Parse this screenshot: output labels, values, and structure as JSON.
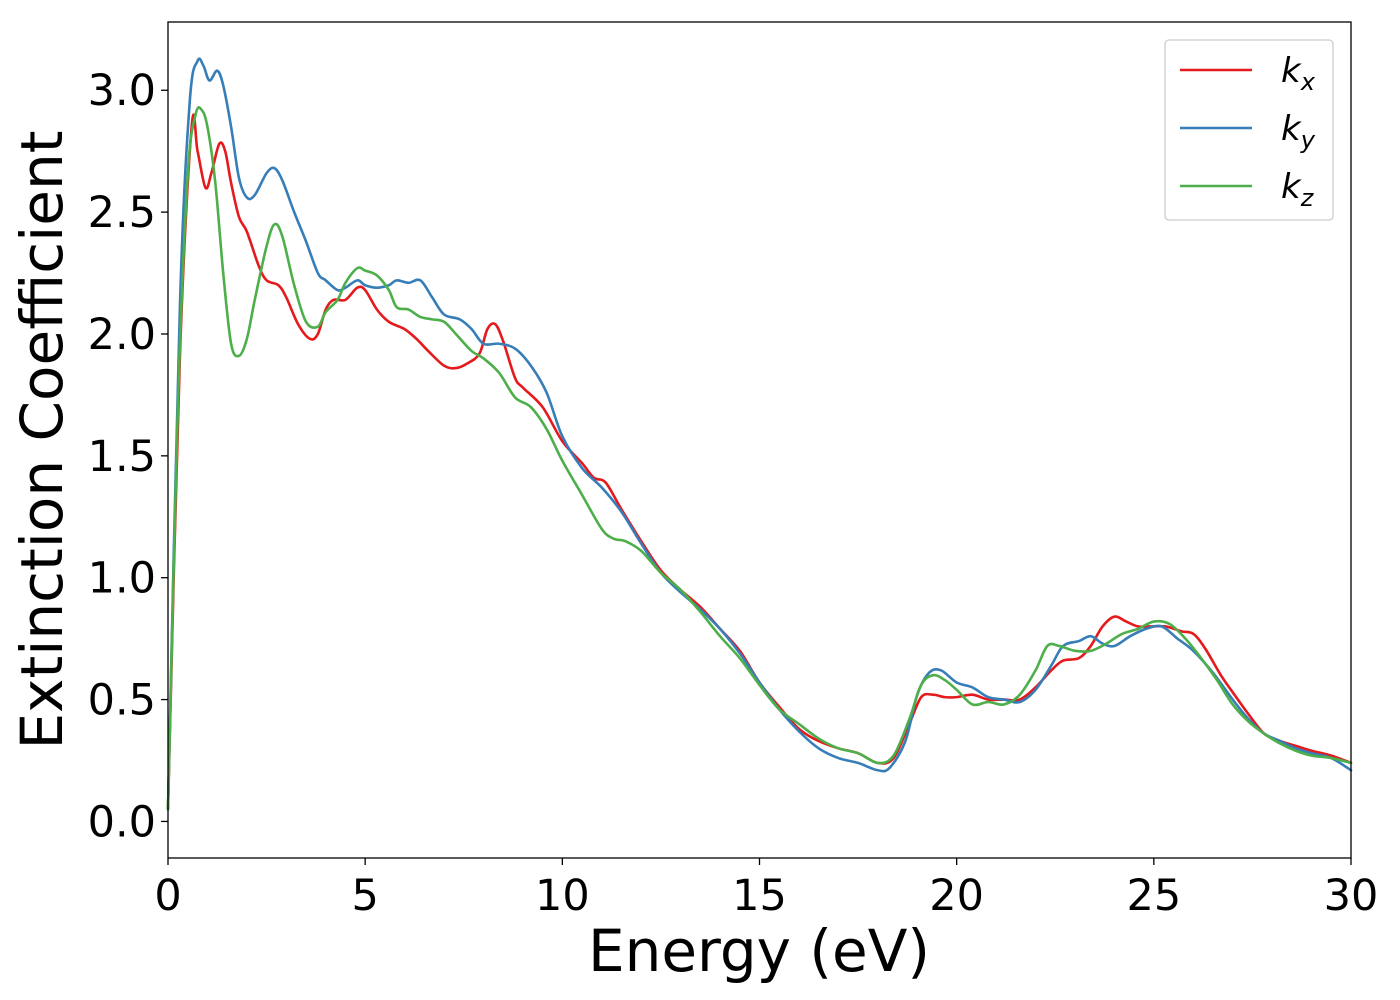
{
  "chart_data": {
    "type": "line",
    "xlabel": "Energy (eV)",
    "ylabel": "Extinction Coefficient",
    "xlim": [
      0,
      30
    ],
    "ylim": [
      -0.15,
      3.28
    ],
    "xticks": [
      0,
      5,
      10,
      15,
      20,
      25,
      30
    ],
    "xtick_labels": [
      "0",
      "5",
      "10",
      "15",
      "20",
      "25",
      "30"
    ],
    "yticks": [
      0.0,
      0.5,
      1.0,
      1.5,
      2.0,
      2.5,
      3.0
    ],
    "ytick_labels": [
      "0.0",
      "0.5",
      "1.0",
      "1.5",
      "2.0",
      "2.5",
      "3.0"
    ],
    "grid": false,
    "legend": "top-right",
    "series": [
      {
        "name": "k",
        "subscript": "x",
        "color": "#e41a1c",
        "points": [
          [
            0,
            0.05
          ],
          [
            0.3,
            1.9
          ],
          [
            0.6,
            2.85
          ],
          [
            0.75,
            2.75
          ],
          [
            0.95,
            2.6
          ],
          [
            1.1,
            2.66
          ],
          [
            1.3,
            2.78
          ],
          [
            1.45,
            2.75
          ],
          [
            1.6,
            2.62
          ],
          [
            1.8,
            2.48
          ],
          [
            2.0,
            2.42
          ],
          [
            2.3,
            2.28
          ],
          [
            2.5,
            2.22
          ],
          [
            2.8,
            2.2
          ],
          [
            3.0,
            2.15
          ],
          [
            3.3,
            2.04
          ],
          [
            3.6,
            1.98
          ],
          [
            3.8,
            2.0
          ],
          [
            4.0,
            2.1
          ],
          [
            4.2,
            2.14
          ],
          [
            4.5,
            2.14
          ],
          [
            4.8,
            2.19
          ],
          [
            5.0,
            2.18
          ],
          [
            5.3,
            2.1
          ],
          [
            5.6,
            2.05
          ],
          [
            6.0,
            2.02
          ],
          [
            6.3,
            1.98
          ],
          [
            6.6,
            1.93
          ],
          [
            7.0,
            1.87
          ],
          [
            7.3,
            1.86
          ],
          [
            7.6,
            1.88
          ],
          [
            7.9,
            1.92
          ],
          [
            8.1,
            2.02
          ],
          [
            8.3,
            2.04
          ],
          [
            8.5,
            1.97
          ],
          [
            8.8,
            1.82
          ],
          [
            9.0,
            1.78
          ],
          [
            9.5,
            1.7
          ],
          [
            10.0,
            1.56
          ],
          [
            10.5,
            1.47
          ],
          [
            10.8,
            1.41
          ],
          [
            11.1,
            1.39
          ],
          [
            11.5,
            1.28
          ],
          [
            12.0,
            1.15
          ],
          [
            12.5,
            1.03
          ],
          [
            13.0,
            0.95
          ],
          [
            13.5,
            0.88
          ],
          [
            14.0,
            0.79
          ],
          [
            14.5,
            0.7
          ],
          [
            15.0,
            0.57
          ],
          [
            15.5,
            0.47
          ],
          [
            16.0,
            0.38
          ],
          [
            16.5,
            0.33
          ],
          [
            17.0,
            0.3
          ],
          [
            17.5,
            0.28
          ],
          [
            18.0,
            0.24
          ],
          [
            18.4,
            0.26
          ],
          [
            18.8,
            0.4
          ],
          [
            19.1,
            0.51
          ],
          [
            19.4,
            0.52
          ],
          [
            19.7,
            0.51
          ],
          [
            20.0,
            0.51
          ],
          [
            20.4,
            0.52
          ],
          [
            20.8,
            0.5
          ],
          [
            21.2,
            0.5
          ],
          [
            21.6,
            0.5
          ],
          [
            22.0,
            0.55
          ],
          [
            22.4,
            0.62
          ],
          [
            22.7,
            0.66
          ],
          [
            23.1,
            0.67
          ],
          [
            23.4,
            0.72
          ],
          [
            23.7,
            0.8
          ],
          [
            24.0,
            0.84
          ],
          [
            24.3,
            0.82
          ],
          [
            24.6,
            0.8
          ],
          [
            24.9,
            0.8
          ],
          [
            25.3,
            0.8
          ],
          [
            25.7,
            0.78
          ],
          [
            26.0,
            0.77
          ],
          [
            26.3,
            0.71
          ],
          [
            26.7,
            0.6
          ],
          [
            27.0,
            0.53
          ],
          [
            27.4,
            0.44
          ],
          [
            27.8,
            0.36
          ],
          [
            28.2,
            0.33
          ],
          [
            28.6,
            0.31
          ],
          [
            29.0,
            0.29
          ],
          [
            29.5,
            0.27
          ],
          [
            30.0,
            0.24
          ]
        ]
      },
      {
        "name": "k",
        "subscript": "y",
        "color": "#377eb8",
        "points": [
          [
            0,
            0.05
          ],
          [
            0.3,
            2.1
          ],
          [
            0.55,
            2.95
          ],
          [
            0.75,
            3.12
          ],
          [
            0.9,
            3.1
          ],
          [
            1.05,
            3.04
          ],
          [
            1.25,
            3.08
          ],
          [
            1.4,
            3.02
          ],
          [
            1.6,
            2.85
          ],
          [
            1.8,
            2.64
          ],
          [
            2.0,
            2.56
          ],
          [
            2.2,
            2.57
          ],
          [
            2.5,
            2.66
          ],
          [
            2.7,
            2.68
          ],
          [
            2.9,
            2.63
          ],
          [
            3.2,
            2.5
          ],
          [
            3.5,
            2.38
          ],
          [
            3.8,
            2.25
          ],
          [
            4.0,
            2.22
          ],
          [
            4.3,
            2.18
          ],
          [
            4.5,
            2.19
          ],
          [
            4.8,
            2.22
          ],
          [
            5.0,
            2.2
          ],
          [
            5.3,
            2.19
          ],
          [
            5.6,
            2.2
          ],
          [
            5.8,
            2.22
          ],
          [
            6.1,
            2.21
          ],
          [
            6.4,
            2.22
          ],
          [
            6.7,
            2.15
          ],
          [
            7.0,
            2.08
          ],
          [
            7.4,
            2.06
          ],
          [
            7.7,
            2.02
          ],
          [
            8.0,
            1.96
          ],
          [
            8.4,
            1.96
          ],
          [
            8.8,
            1.94
          ],
          [
            9.2,
            1.87
          ],
          [
            9.6,
            1.76
          ],
          [
            10.0,
            1.58
          ],
          [
            10.5,
            1.45
          ],
          [
            11.0,
            1.37
          ],
          [
            11.5,
            1.27
          ],
          [
            12.0,
            1.14
          ],
          [
            12.5,
            1.02
          ],
          [
            13.0,
            0.94
          ],
          [
            13.5,
            0.87
          ],
          [
            14.0,
            0.79
          ],
          [
            14.5,
            0.69
          ],
          [
            15.0,
            0.57
          ],
          [
            15.5,
            0.46
          ],
          [
            16.0,
            0.37
          ],
          [
            16.5,
            0.3
          ],
          [
            17.0,
            0.26
          ],
          [
            17.5,
            0.24
          ],
          [
            18.0,
            0.21
          ],
          [
            18.3,
            0.22
          ],
          [
            18.7,
            0.33
          ],
          [
            19.0,
            0.52
          ],
          [
            19.3,
            0.61
          ],
          [
            19.6,
            0.62
          ],
          [
            20.0,
            0.57
          ],
          [
            20.4,
            0.55
          ],
          [
            20.8,
            0.51
          ],
          [
            21.2,
            0.5
          ],
          [
            21.6,
            0.49
          ],
          [
            22.0,
            0.54
          ],
          [
            22.4,
            0.64
          ],
          [
            22.7,
            0.72
          ],
          [
            23.1,
            0.74
          ],
          [
            23.4,
            0.76
          ],
          [
            23.7,
            0.73
          ],
          [
            24.0,
            0.72
          ],
          [
            24.4,
            0.76
          ],
          [
            24.8,
            0.79
          ],
          [
            25.2,
            0.8
          ],
          [
            25.6,
            0.75
          ],
          [
            26.0,
            0.7
          ],
          [
            26.5,
            0.61
          ],
          [
            27.0,
            0.5
          ],
          [
            27.4,
            0.42
          ],
          [
            27.8,
            0.36
          ],
          [
            28.2,
            0.33
          ],
          [
            28.6,
            0.3
          ],
          [
            29.0,
            0.28
          ],
          [
            29.5,
            0.26
          ],
          [
            30.0,
            0.21
          ]
        ]
      },
      {
        "name": "k",
        "subscript": "z",
        "color": "#4daf4a",
        "points": [
          [
            0,
            0.05
          ],
          [
            0.25,
            1.7
          ],
          [
            0.5,
            2.65
          ],
          [
            0.7,
            2.9
          ],
          [
            0.85,
            2.92
          ],
          [
            1.0,
            2.85
          ],
          [
            1.2,
            2.62
          ],
          [
            1.4,
            2.25
          ],
          [
            1.6,
            1.96
          ],
          [
            1.8,
            1.91
          ],
          [
            2.0,
            1.98
          ],
          [
            2.2,
            2.14
          ],
          [
            2.5,
            2.36
          ],
          [
            2.7,
            2.45
          ],
          [
            2.9,
            2.4
          ],
          [
            3.2,
            2.2
          ],
          [
            3.5,
            2.05
          ],
          [
            3.8,
            2.03
          ],
          [
            4.0,
            2.09
          ],
          [
            4.3,
            2.14
          ],
          [
            4.5,
            2.21
          ],
          [
            4.8,
            2.27
          ],
          [
            5.0,
            2.26
          ],
          [
            5.3,
            2.24
          ],
          [
            5.6,
            2.18
          ],
          [
            5.8,
            2.11
          ],
          [
            6.1,
            2.1
          ],
          [
            6.4,
            2.07
          ],
          [
            6.7,
            2.06
          ],
          [
            7.0,
            2.05
          ],
          [
            7.3,
            2.0
          ],
          [
            7.7,
            1.93
          ],
          [
            8.0,
            1.9
          ],
          [
            8.4,
            1.84
          ],
          [
            8.8,
            1.74
          ],
          [
            9.2,
            1.7
          ],
          [
            9.6,
            1.61
          ],
          [
            10.0,
            1.48
          ],
          [
            10.5,
            1.34
          ],
          [
            11.0,
            1.2
          ],
          [
            11.3,
            1.16
          ],
          [
            11.6,
            1.15
          ],
          [
            12.0,
            1.11
          ],
          [
            12.5,
            1.02
          ],
          [
            13.0,
            0.95
          ],
          [
            13.5,
            0.86
          ],
          [
            14.0,
            0.76
          ],
          [
            14.5,
            0.67
          ],
          [
            15.0,
            0.56
          ],
          [
            15.5,
            0.46
          ],
          [
            16.0,
            0.4
          ],
          [
            16.5,
            0.34
          ],
          [
            17.0,
            0.3
          ],
          [
            17.5,
            0.28
          ],
          [
            18.0,
            0.24
          ],
          [
            18.4,
            0.27
          ],
          [
            18.8,
            0.42
          ],
          [
            19.1,
            0.56
          ],
          [
            19.4,
            0.6
          ],
          [
            19.7,
            0.58
          ],
          [
            20.0,
            0.54
          ],
          [
            20.4,
            0.48
          ],
          [
            20.8,
            0.49
          ],
          [
            21.2,
            0.48
          ],
          [
            21.6,
            0.52
          ],
          [
            22.0,
            0.62
          ],
          [
            22.3,
            0.72
          ],
          [
            22.6,
            0.72
          ],
          [
            23.0,
            0.7
          ],
          [
            23.4,
            0.7
          ],
          [
            23.8,
            0.73
          ],
          [
            24.2,
            0.77
          ],
          [
            24.6,
            0.79
          ],
          [
            25.0,
            0.82
          ],
          [
            25.4,
            0.81
          ],
          [
            25.8,
            0.75
          ],
          [
            26.2,
            0.67
          ],
          [
            26.6,
            0.58
          ],
          [
            27.0,
            0.48
          ],
          [
            27.4,
            0.41
          ],
          [
            27.8,
            0.36
          ],
          [
            28.2,
            0.32
          ],
          [
            28.6,
            0.29
          ],
          [
            29.0,
            0.27
          ],
          [
            29.5,
            0.26
          ],
          [
            30.0,
            0.24
          ]
        ]
      }
    ]
  }
}
